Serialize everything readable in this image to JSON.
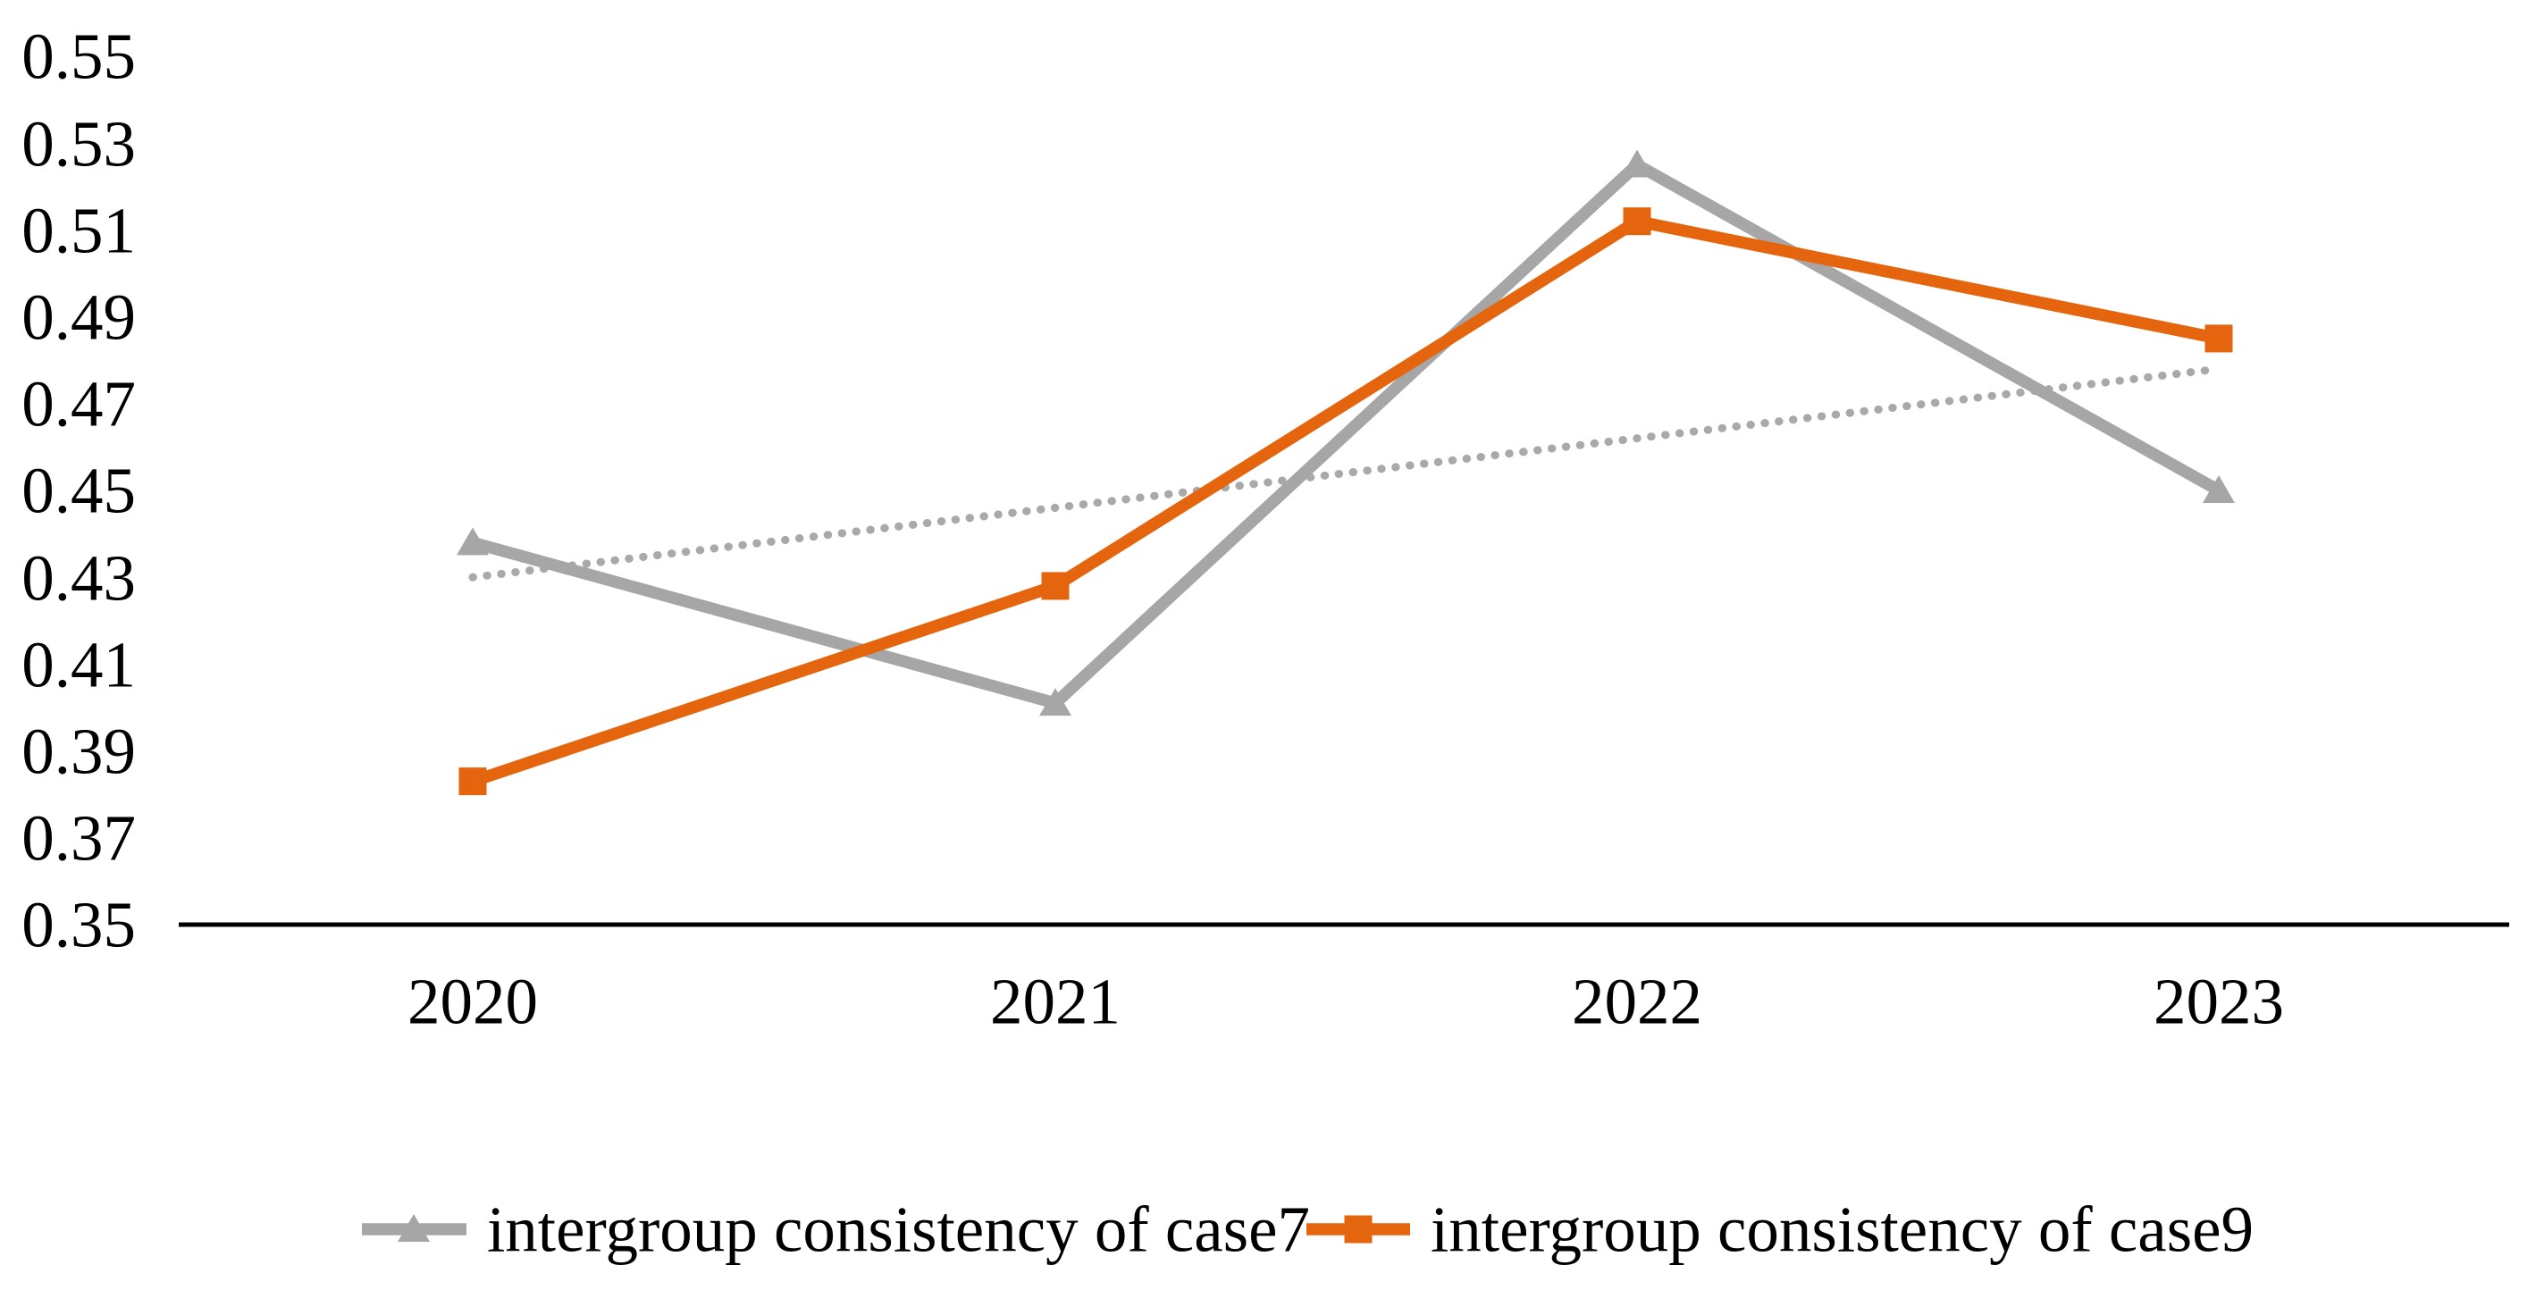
{
  "chart_data": {
    "type": "line",
    "title": "",
    "xlabel": "",
    "ylabel": "",
    "categories": [
      "2020",
      "2021",
      "2022",
      "2023"
    ],
    "series": [
      {
        "name": "intergroup consistency of case7",
        "values": [
          0.438,
          0.401,
          0.525,
          0.45
        ],
        "color": "#A6A6A6",
        "marker": "triangle"
      },
      {
        "name": "intergroup consistency of case9",
        "values": [
          0.383,
          0.428,
          0.512,
          0.485
        ],
        "color": "#E5650E",
        "marker": "square"
      }
    ],
    "trendline": {
      "of_series": "intergroup consistency of case7",
      "style": "dotted",
      "color": "#A9A9A9",
      "start_value": 0.43,
      "end_value": 0.478
    },
    "ylim": [
      0.35,
      0.55
    ],
    "ytick_step": 0.02,
    "ytick_labels": [
      "0.35",
      "0.37",
      "0.39",
      "0.41",
      "0.43",
      "0.45",
      "0.47",
      "0.49",
      "0.51",
      "0.53",
      "0.55"
    ],
    "grid": false,
    "legend_position": "bottom",
    "axis_color": "#000000",
    "text_color": "#000000"
  }
}
